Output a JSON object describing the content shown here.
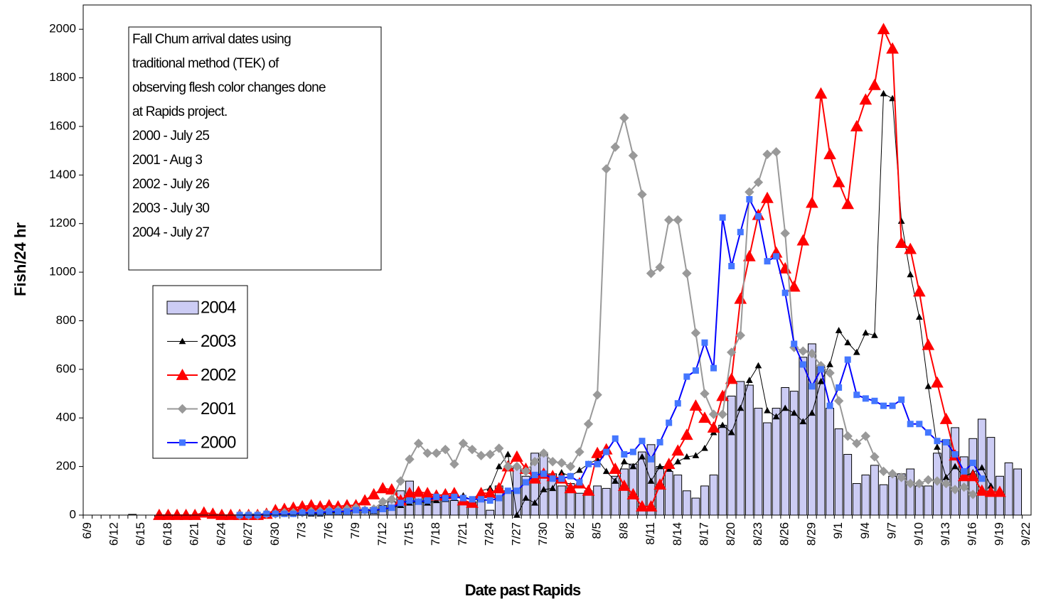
{
  "chart_data": {
    "type": "bar",
    "y_label": "Fish/24 hr",
    "x_label": "Date past Rapids",
    "annotation": [
      "Fall Chum arrival dates using",
      "traditional method (TEK) of",
      "observing flesh color changes done",
      "at Rapids project.",
      "2000 - July 25",
      "2001 -  Aug 3",
      "2002 - July 26",
      "2003 - July 30",
      "2004 - July 27"
    ],
    "categories": [
      "6/9",
      null,
      null,
      "6/12",
      null,
      null,
      "6/15",
      null,
      null,
      "6/18",
      null,
      null,
      "6/21",
      null,
      null,
      "6/24",
      null,
      null,
      "6/27",
      null,
      null,
      "6/30",
      null,
      null,
      "7/3",
      null,
      null,
      "7/6",
      null,
      null,
      "7/9",
      null,
      null,
      "7/12",
      null,
      null,
      "7/15",
      null,
      null,
      "7/18",
      null,
      null,
      "7/21",
      null,
      null,
      "7/24",
      null,
      null,
      "7/27",
      null,
      null,
      "7/30",
      null,
      null,
      "8/2",
      null,
      null,
      "8/5",
      null,
      null,
      "8/8",
      null,
      null,
      "8/11",
      null,
      null,
      "8/14",
      null,
      null,
      "8/17",
      null,
      null,
      "8/20",
      null,
      null,
      "8/23",
      null,
      null,
      "8/26",
      null,
      null,
      "8/29",
      null,
      null,
      "9/1",
      null,
      null,
      "9/4",
      null,
      null,
      "9/7",
      null,
      null,
      "9/10",
      null,
      null,
      "9/13",
      null,
      null,
      "9/16",
      null,
      null,
      "9/19",
      null,
      null,
      "9/22"
    ],
    "ylim": [
      0,
      2100
    ],
    "yticks": [
      0,
      200,
      400,
      600,
      800,
      1000,
      1200,
      1400,
      1600,
      1800,
      2000
    ],
    "series": [
      {
        "name": "2004",
        "type": "bar",
        "color": "#ccccf4",
        "values": [
          0,
          0,
          0,
          0,
          0,
          3,
          0,
          0,
          0,
          0,
          0,
          0,
          0,
          0,
          0,
          0,
          0,
          0,
          5,
          5,
          8,
          10,
          5,
          8,
          10,
          12,
          10,
          15,
          20,
          15,
          20,
          25,
          30,
          40,
          55,
          100,
          140,
          90,
          80,
          70,
          60,
          60,
          50,
          55,
          60,
          20,
          120,
          100,
          200,
          160,
          255,
          255,
          170,
          120,
          130,
          90,
          100,
          120,
          110,
          160,
          190,
          210,
          260,
          290,
          200,
          180,
          165,
          100,
          70,
          120,
          165,
          370,
          490,
          550,
          535,
          440,
          380,
          440,
          525,
          510,
          650,
          705,
          610,
          440,
          355,
          250,
          130,
          165,
          205,
          125,
          160,
          170,
          190,
          120,
          120,
          255,
          310,
          360,
          240,
          315,
          395,
          320,
          160,
          215,
          190,
          null
        ]
      },
      {
        "name": "2003",
        "type": "line",
        "marker": "small-triangle",
        "color": "#000000",
        "values": [
          null,
          null,
          null,
          null,
          null,
          null,
          null,
          null,
          null,
          null,
          null,
          null,
          null,
          null,
          null,
          null,
          0,
          0,
          0,
          0,
          2,
          5,
          5,
          5,
          8,
          5,
          5,
          10,
          10,
          15,
          20,
          20,
          15,
          25,
          30,
          40,
          50,
          55,
          50,
          60,
          65,
          70,
          80,
          60,
          100,
          110,
          200,
          250,
          0,
          70,
          50,
          105,
          110,
          175,
          160,
          185,
          210,
          230,
          180,
          140,
          220,
          200,
          240,
          140,
          200,
          190,
          220,
          240,
          245,
          275,
          340,
          370,
          340,
          440,
          555,
          615,
          430,
          405,
          440,
          420,
          385,
          420,
          550,
          620,
          760,
          710,
          670,
          750,
          740,
          1735,
          1715,
          1210,
          990,
          815,
          530,
          280,
          155,
          200,
          160,
          175,
          195,
          120,
          null,
          null,
          null,
          null
        ]
      },
      {
        "name": "2002",
        "type": "line",
        "marker": "triangle",
        "color": "#ff0000",
        "values": [
          null,
          null,
          null,
          null,
          null,
          null,
          null,
          null,
          0,
          0,
          0,
          0,
          0,
          10,
          5,
          0,
          0,
          0,
          0,
          0,
          5,
          20,
          25,
          30,
          35,
          40,
          35,
          40,
          35,
          40,
          40,
          60,
          85,
          110,
          105,
          60,
          90,
          95,
          90,
          80,
          85,
          90,
          60,
          50,
          90,
          90,
          110,
          200,
          240,
          190,
          150,
          170,
          160,
          150,
          110,
          130,
          100,
          255,
          270,
          190,
          120,
          85,
          35,
          35,
          125,
          210,
          265,
          330,
          450,
          400,
          360,
          490,
          560,
          890,
          1065,
          1235,
          1305,
          1080,
          1015,
          940,
          1130,
          1285,
          1735,
          1485,
          1370,
          1280,
          1600,
          1710,
          1770,
          2000,
          1920,
          1120,
          1095,
          920,
          700,
          545,
          395,
          245,
          160,
          160,
          100,
          95,
          95,
          null,
          null,
          null
        ]
      },
      {
        "name": "2001",
        "type": "line",
        "marker": "diamond",
        "color": "#999999",
        "values": [
          null,
          null,
          null,
          null,
          null,
          null,
          null,
          null,
          null,
          null,
          null,
          null,
          null,
          null,
          null,
          null,
          null,
          0,
          0,
          0,
          5,
          5,
          10,
          10,
          10,
          15,
          15,
          20,
          20,
          25,
          30,
          20,
          25,
          55,
          65,
          140,
          230,
          295,
          255,
          255,
          270,
          210,
          295,
          270,
          245,
          250,
          275,
          200,
          200,
          180,
          220,
          255,
          220,
          215,
          200,
          260,
          375,
          495,
          1425,
          1515,
          1635,
          1480,
          1320,
          995,
          1020,
          1215,
          1215,
          995,
          750,
          500,
          415,
          415,
          670,
          740,
          1330,
          1370,
          1485,
          1495,
          1160,
          690,
          675,
          665,
          615,
          585,
          470,
          325,
          295,
          325,
          240,
          180,
          170,
          155,
          130,
          130,
          145,
          140,
          130,
          105,
          115,
          85,
          null,
          null,
          null,
          null,
          null,
          null
        ]
      },
      {
        "name": "2000",
        "type": "line",
        "marker": "square",
        "color": "#0000ff",
        "marker_color": "#4477ff",
        "values": [
          null,
          null,
          null,
          null,
          null,
          null,
          null,
          null,
          null,
          null,
          null,
          null,
          null,
          null,
          null,
          null,
          null,
          0,
          0,
          0,
          5,
          5,
          5,
          5,
          10,
          10,
          10,
          15,
          15,
          15,
          20,
          20,
          20,
          25,
          30,
          50,
          60,
          55,
          60,
          75,
          70,
          75,
          70,
          65,
          65,
          60,
          70,
          100,
          100,
          135,
          165,
          170,
          150,
          150,
          160,
          135,
          210,
          210,
          260,
          315,
          250,
          260,
          305,
          230,
          300,
          380,
          460,
          570,
          595,
          710,
          605,
          1225,
          1025,
          1165,
          1300,
          1230,
          1045,
          1065,
          915,
          705,
          620,
          530,
          600,
          450,
          525,
          640,
          495,
          480,
          470,
          450,
          450,
          475,
          375,
          375,
          340,
          305,
          300,
          250,
          180,
          215,
          150,
          null,
          null,
          null,
          null,
          null
        ]
      }
    ]
  }
}
